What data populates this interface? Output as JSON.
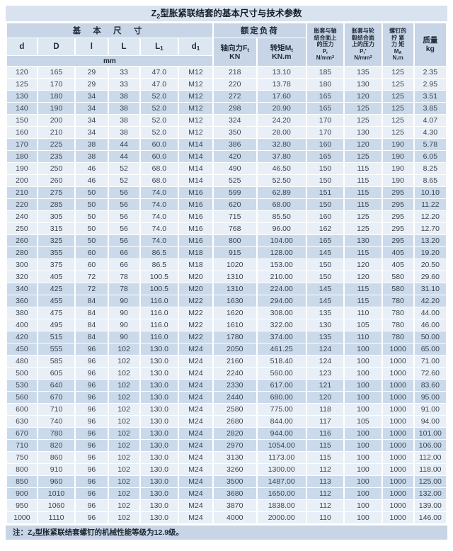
{
  "page": {
    "title": {
      "pre": "Z",
      "sub": "2",
      "post": "型胀紧联结套的基本尺寸与技术参数"
    },
    "note": {
      "pre": "注：Z",
      "sub": "2",
      "post": "型胀紧联结套螺钉的机械性能等级为12.9级。"
    }
  },
  "colors": {
    "title_band": "#d8e3ef",
    "header_band": "#c7d5e6",
    "subheader_band": "#dde7f1",
    "row_light": "#e9eff6",
    "row_dark": "#cbdaea",
    "grid_line": "#ffffff",
    "text": "#2b3440"
  },
  "table": {
    "header": {
      "group_basic": "基 本 尺 寸",
      "group_load": "额定负荷",
      "unit_mm": "mm",
      "col_d": "d",
      "col_D": "D",
      "col_l": "l",
      "col_L": "L",
      "col_L1_base": "L",
      "col_L1_sub": "1",
      "col_d1_base": "d",
      "col_d1_sub": "1",
      "axial_base": "轴向力F",
      "axial_sub": "t",
      "axial_unit": "KN",
      "torque_base": "转矩M",
      "torque_sub": "t",
      "torque_unit": "KN.m",
      "pr_shaft_l1": "胀套与轴",
      "pr_shaft_l2": "结合面上",
      "pr_shaft_l3": "的压力",
      "pr_shaft_sym": "P",
      "pr_shaft_sym_sub": "r",
      "pr_hub_l1": "胀套与轮",
      "pr_hub_l2": "毂结合面",
      "pr_hub_l3": "上的压力",
      "pr_hub_sym": "P",
      "pr_hub_sym_sub": "r",
      "pr_hub_prime": "′",
      "pr_unit_base": "N/mm",
      "pr_unit_sup": "2",
      "screw_l1": "螺钉的",
      "screw_l2": "拧 紧",
      "screw_l3": "力 矩",
      "screw_sym": "M",
      "screw_sym_sub": "A",
      "screw_unit": "N.m",
      "mass_l1": "质量",
      "mass_l2": "kg"
    },
    "columns_keys": [
      "d",
      "D",
      "l",
      "L",
      "L1",
      "d1",
      "Ft",
      "Mt",
      "Pr",
      "Pr_hub",
      "MA",
      "kg"
    ],
    "rows": [
      [
        "120",
        "165",
        "29",
        "33",
        "47.0",
        "M12",
        "218",
        "13.10",
        "185",
        "135",
        "125",
        "2.35"
      ],
      [
        "125",
        "170",
        "29",
        "33",
        "47.0",
        "M12",
        "220",
        "13.78",
        "180",
        "130",
        "125",
        "2.95"
      ],
      [
        "130",
        "180",
        "34",
        "38",
        "52.0",
        "M12",
        "272",
        "17.60",
        "165",
        "120",
        "125",
        "3.51"
      ],
      [
        "140",
        "190",
        "34",
        "38",
        "52.0",
        "M12",
        "298",
        "20.90",
        "165",
        "125",
        "125",
        "3.85"
      ],
      [
        "150",
        "200",
        "34",
        "38",
        "52.0",
        "M12",
        "324",
        "24.20",
        "170",
        "125",
        "125",
        "4.07"
      ],
      [
        "160",
        "210",
        "34",
        "38",
        "52.0",
        "M12",
        "350",
        "28.00",
        "170",
        "130",
        "125",
        "4.30"
      ],
      [
        "170",
        "225",
        "38",
        "44",
        "60.0",
        "M14",
        "386",
        "32.80",
        "160",
        "120",
        "190",
        "5.78"
      ],
      [
        "180",
        "235",
        "38",
        "44",
        "60.0",
        "M14",
        "420",
        "37.80",
        "165",
        "125",
        "190",
        "6.05"
      ],
      [
        "190",
        "250",
        "46",
        "52",
        "68.0",
        "M14",
        "490",
        "46.50",
        "150",
        "115",
        "190",
        "8.25"
      ],
      [
        "200",
        "260",
        "46",
        "52",
        "68.0",
        "M14",
        "525",
        "52.50",
        "150",
        "115",
        "190",
        "8.65"
      ],
      [
        "210",
        "275",
        "50",
        "56",
        "74.0",
        "M16",
        "599",
        "62.89",
        "151",
        "115",
        "295",
        "10.10"
      ],
      [
        "220",
        "285",
        "50",
        "56",
        "74.0",
        "M16",
        "620",
        "68.00",
        "150",
        "115",
        "295",
        "11.22"
      ],
      [
        "240",
        "305",
        "50",
        "56",
        "74.0",
        "M16",
        "715",
        "85.50",
        "160",
        "125",
        "295",
        "12.20"
      ],
      [
        "250",
        "315",
        "50",
        "56",
        "74.0",
        "M16",
        "768",
        "96.00",
        "162",
        "125",
        "295",
        "12.70"
      ],
      [
        "260",
        "325",
        "50",
        "56",
        "74.0",
        "M16",
        "800",
        "104.00",
        "165",
        "130",
        "295",
        "13.20"
      ],
      [
        "280",
        "355",
        "60",
        "66",
        "86.5",
        "M18",
        "915",
        "128.00",
        "145",
        "115",
        "405",
        "19.20"
      ],
      [
        "300",
        "375",
        "60",
        "66",
        "86.5",
        "M18",
        "1020",
        "153.00",
        "150",
        "120",
        "405",
        "20.50"
      ],
      [
        "320",
        "405",
        "72",
        "78",
        "100.5",
        "M20",
        "1310",
        "210.00",
        "150",
        "120",
        "580",
        "29.60"
      ],
      [
        "340",
        "425",
        "72",
        "78",
        "100.5",
        "M20",
        "1310",
        "224.00",
        "145",
        "115",
        "580",
        "31.10"
      ],
      [
        "360",
        "455",
        "84",
        "90",
        "116.0",
        "M22",
        "1630",
        "294.00",
        "145",
        "115",
        "780",
        "42.20"
      ],
      [
        "380",
        "475",
        "84",
        "90",
        "116.0",
        "M22",
        "1620",
        "308.00",
        "135",
        "110",
        "780",
        "44.00"
      ],
      [
        "400",
        "495",
        "84",
        "90",
        "116.0",
        "M22",
        "1610",
        "322.00",
        "130",
        "105",
        "780",
        "46.00"
      ],
      [
        "420",
        "515",
        "84",
        "90",
        "116.0",
        "M22",
        "1780",
        "374.00",
        "135",
        "110",
        "780",
        "50.00"
      ],
      [
        "450",
        "555",
        "96",
        "102",
        "130.0",
        "M24",
        "2050",
        "461.25",
        "124",
        "100",
        "1000",
        "65.00"
      ],
      [
        "480",
        "585",
        "96",
        "102",
        "130.0",
        "M24",
        "2160",
        "518.40",
        "124",
        "100",
        "1000",
        "71.00"
      ],
      [
        "500",
        "605",
        "96",
        "102",
        "130.0",
        "M24",
        "2240",
        "560.00",
        "123",
        "100",
        "1000",
        "72.60"
      ],
      [
        "530",
        "640",
        "96",
        "102",
        "130.0",
        "M24",
        "2330",
        "617.00",
        "121",
        "100",
        "1000",
        "83.60"
      ],
      [
        "560",
        "670",
        "96",
        "102",
        "130.0",
        "M24",
        "2440",
        "680.00",
        "120",
        "100",
        "1000",
        "95.00"
      ],
      [
        "600",
        "710",
        "96",
        "102",
        "130.0",
        "M24",
        "2580",
        "775.00",
        "118",
        "100",
        "1000",
        "91.00"
      ],
      [
        "630",
        "740",
        "96",
        "102",
        "130.0",
        "M24",
        "2680",
        "844.00",
        "117",
        "105",
        "1000",
        "94.00"
      ],
      [
        "670",
        "780",
        "96",
        "102",
        "130.0",
        "M24",
        "2820",
        "944.00",
        "116",
        "100",
        "1000",
        "101.00"
      ],
      [
        "710",
        "820",
        "96",
        "102",
        "130.0",
        "M24",
        "2970",
        "1054.00",
        "115",
        "100",
        "1000",
        "106.00"
      ],
      [
        "750",
        "860",
        "96",
        "102",
        "130.0",
        "M24",
        "3130",
        "1173.00",
        "115",
        "100",
        "1000",
        "112.00"
      ],
      [
        "800",
        "910",
        "96",
        "102",
        "130.0",
        "M24",
        "3260",
        "1300.00",
        "112",
        "100",
        "1000",
        "118.00"
      ],
      [
        "850",
        "960",
        "96",
        "102",
        "130.0",
        "M24",
        "3500",
        "1487.00",
        "113",
        "100",
        "1000",
        "125.00"
      ],
      [
        "900",
        "1010",
        "96",
        "102",
        "130.0",
        "M24",
        "3680",
        "1650.00",
        "112",
        "100",
        "1000",
        "132.00"
      ],
      [
        "950",
        "1060",
        "96",
        "102",
        "130.0",
        "M24",
        "3870",
        "1838.00",
        "112",
        "100",
        "1000",
        "139.00"
      ],
      [
        "1000",
        "1110",
        "96",
        "102",
        "130.0",
        "M24",
        "4000",
        "2000.00",
        "110",
        "100",
        "1000",
        "146.00"
      ]
    ]
  }
}
